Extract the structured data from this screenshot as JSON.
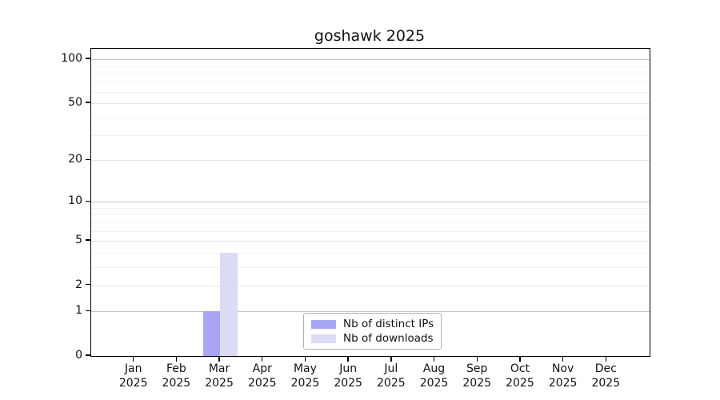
{
  "title": "goshawk 2025",
  "colors": {
    "distinct_ips": "#a6a6f4",
    "downloads": "#dbdbf6",
    "grid_major": "#c6c6c6",
    "grid_mid": "#e4e4e4",
    "grid_minor": "#f1f1f1",
    "axis": "#000000"
  },
  "legend": {
    "items": [
      {
        "label": "Nb of distinct IPs",
        "color_key": "distinct_ips"
      },
      {
        "label": "Nb of downloads",
        "color_key": "downloads"
      }
    ]
  },
  "chart_data": {
    "type": "bar",
    "title": "goshawk 2025",
    "scale": "log1p",
    "categories": [
      "Jan 2025",
      "Feb 2025",
      "Mar 2025",
      "Apr 2025",
      "May 2025",
      "Jun 2025",
      "Jul 2025",
      "Aug 2025",
      "Sep 2025",
      "Oct 2025",
      "Nov 2025",
      "Dec 2025"
    ],
    "months": [
      "Jan",
      "Feb",
      "Mar",
      "Apr",
      "May",
      "Jun",
      "Jul",
      "Aug",
      "Sep",
      "Oct",
      "Nov",
      "Dec"
    ],
    "year": "2025",
    "series": [
      {
        "name": "Nb of distinct IPs",
        "color_key": "distinct_ips",
        "values": [
          0,
          0,
          1,
          0,
          0,
          0,
          0,
          0,
          0,
          0,
          0,
          0
        ]
      },
      {
        "name": "Nb of downloads",
        "color_key": "downloads",
        "values": [
          0,
          0,
          4,
          0,
          0,
          0,
          0,
          0,
          0,
          0,
          0,
          0
        ]
      }
    ],
    "y_ticks": [
      0,
      1,
      2,
      5,
      10,
      20,
      50,
      100
    ],
    "y_decade_ticks": [
      1,
      10,
      100
    ],
    "y_minor_ticks": [
      3,
      4,
      6,
      7,
      8,
      9,
      30,
      40,
      60,
      70,
      80,
      90
    ],
    "ylim": [
      0,
      118
    ],
    "xlabel": "",
    "ylabel": "",
    "grid": "on",
    "legend_position": "lower center"
  }
}
